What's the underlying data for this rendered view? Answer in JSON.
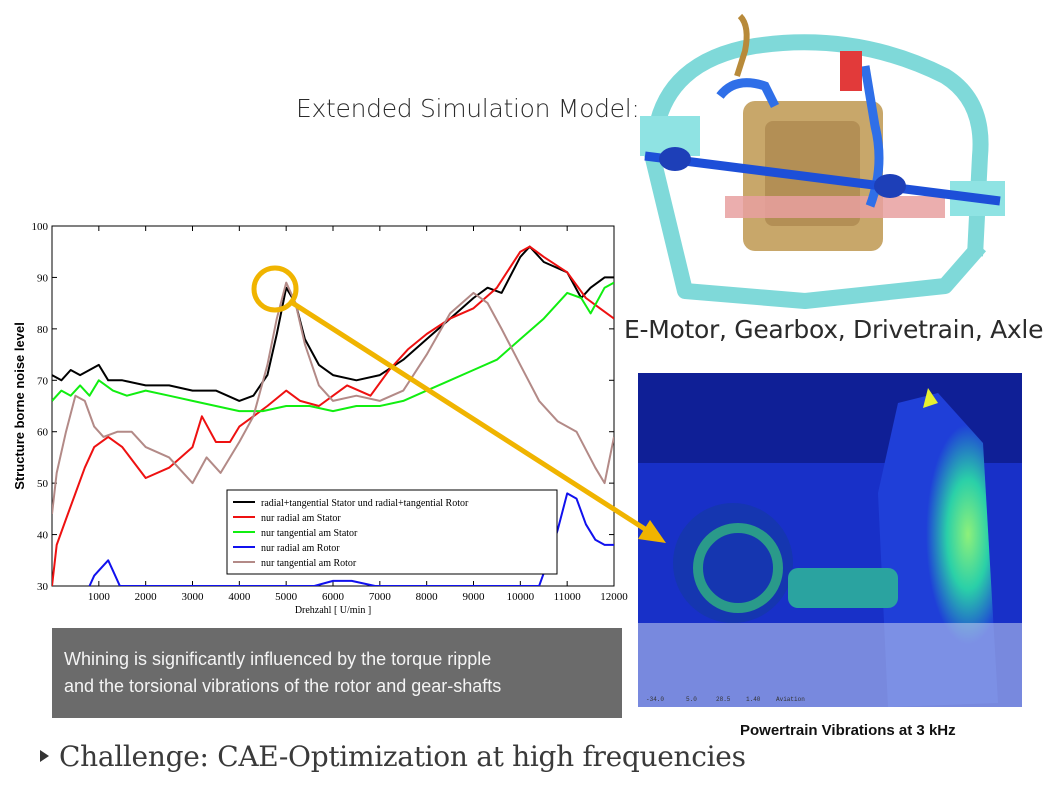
{
  "slide": {
    "model_heading": "Extended Simulation Model:",
    "components_heading": "E-Motor, Gearbox, Drivetrain, Axle",
    "caption_line1": "Whining is significantly influenced by the torque ripple",
    "caption_line2": "and the torsional vibrations of the rotor and gear-shafts",
    "challenge": "Challenge: CAE-Optimization at high frequencies",
    "fe_caption": "Powertrain Vibrations at 3 kHz",
    "fe_scale_labels": [
      "-34.0",
      "5.0",
      "28.5",
      "1.40",
      "Aviation"
    ]
  },
  "colors": {
    "caption_bg": "#6b6b6b",
    "highlight": "#f0b400",
    "cad_frame": "#7fd9d9",
    "cad_motor": "#c8a76a",
    "cad_shaft": "#1d4fd8"
  },
  "chart_data": {
    "type": "line",
    "xlabel": "Drehzahl [ U/min ]",
    "ylabel": "Structure borne noise level",
    "xlim": [
      0,
      12000
    ],
    "ylim": [
      30,
      100
    ],
    "xticks": [
      1000,
      2000,
      3000,
      4000,
      5000,
      6000,
      7000,
      8000,
      9000,
      10000,
      11000,
      12000
    ],
    "yticks": [
      30,
      40,
      50,
      60,
      70,
      80,
      90,
      100
    ],
    "grid": false,
    "legend_position": "bottom-right",
    "annotation": "circle at peak ~5000 U/min with arrow to FE image",
    "series": [
      {
        "name": "radial+tangential Stator und radial+tangential Rotor",
        "color": "#000000",
        "x": [
          0,
          200,
          400,
          600,
          800,
          1000,
          1200,
          1500,
          2000,
          2500,
          3000,
          3500,
          4000,
          4300,
          4600,
          4800,
          5000,
          5200,
          5400,
          5700,
          6000,
          6500,
          7000,
          7500,
          8000,
          8500,
          9000,
          9300,
          9600,
          10000,
          10200,
          10500,
          11000,
          11300,
          11500,
          11800,
          12000
        ],
        "y": [
          71,
          70,
          72,
          71,
          72,
          73,
          70,
          70,
          69,
          69,
          68,
          68,
          66,
          67,
          71,
          79,
          88,
          85,
          78,
          73,
          71,
          70,
          71,
          74,
          78,
          82,
          86,
          88,
          87,
          94,
          96,
          93,
          91,
          86,
          88,
          90,
          90
        ]
      },
      {
        "name": "nur radial am Stator",
        "color": "#ee1111",
        "x": [
          0,
          100,
          300,
          500,
          700,
          900,
          1200,
          1500,
          2000,
          2500,
          3000,
          3200,
          3500,
          3800,
          4000,
          4300,
          4600,
          5000,
          5300,
          5700,
          6000,
          6300,
          6800,
          7200,
          7600,
          8000,
          8500,
          9000,
          9500,
          10000,
          10200,
          10500,
          11000,
          11400,
          11700,
          12000
        ],
        "y": [
          30,
          38,
          43,
          48,
          53,
          57,
          59,
          57,
          51,
          53,
          57,
          63,
          58,
          58,
          61,
          63,
          65,
          68,
          66,
          65,
          67,
          69,
          67,
          72,
          76,
          79,
          82,
          84,
          88,
          95,
          96,
          94,
          91,
          86,
          84,
          82
        ]
      },
      {
        "name": "nur tangential am Stator",
        "color": "#11ee11",
        "x": [
          0,
          200,
          400,
          600,
          800,
          1000,
          1300,
          1600,
          2000,
          2500,
          3000,
          3500,
          4000,
          4500,
          5000,
          5500,
          6000,
          6500,
          7000,
          7500,
          8000,
          8500,
          9000,
          9500,
          10000,
          10500,
          11000,
          11300,
          11500,
          11800,
          12000
        ],
        "y": [
          66,
          68,
          67,
          69,
          67,
          70,
          68,
          67,
          68,
          67,
          66,
          65,
          64,
          64,
          65,
          65,
          64,
          65,
          65,
          66,
          68,
          70,
          72,
          74,
          78,
          82,
          87,
          86,
          83,
          88,
          89
        ]
      },
      {
        "name": "nur radial am Rotor",
        "color": "#1111ee",
        "x": [
          800,
          900,
          1000,
          1100,
          1200,
          1300,
          1450,
          5600,
          6000,
          6400,
          6900,
          10400,
          10600,
          10800,
          11000,
          11200,
          11400,
          11600,
          11800,
          12000
        ],
        "y": [
          30,
          32,
          33,
          34,
          35,
          33,
          30,
          30,
          31,
          31,
          30,
          30,
          35,
          41,
          48,
          47,
          42,
          39,
          38,
          38
        ]
      },
      {
        "name": "nur tangential am Rotor",
        "color": "#b38a87",
        "x": [
          0,
          100,
          300,
          500,
          700,
          900,
          1100,
          1400,
          1700,
          2000,
          2500,
          3000,
          3300,
          3600,
          4000,
          4300,
          4600,
          4800,
          5000,
          5200,
          5400,
          5700,
          6000,
          6500,
          7000,
          7500,
          8000,
          8500,
          9000,
          9300,
          9600,
          10000,
          10400,
          10800,
          11200,
          11600,
          11800,
          12000
        ],
        "y": [
          44,
          52,
          60,
          67,
          66,
          61,
          59,
          60,
          60,
          57,
          55,
          50,
          55,
          52,
          58,
          63,
          73,
          82,
          89,
          85,
          77,
          69,
          66,
          67,
          66,
          68,
          75,
          83,
          87,
          85,
          80,
          73,
          66,
          62,
          60,
          53,
          50,
          59
        ]
      }
    ]
  }
}
